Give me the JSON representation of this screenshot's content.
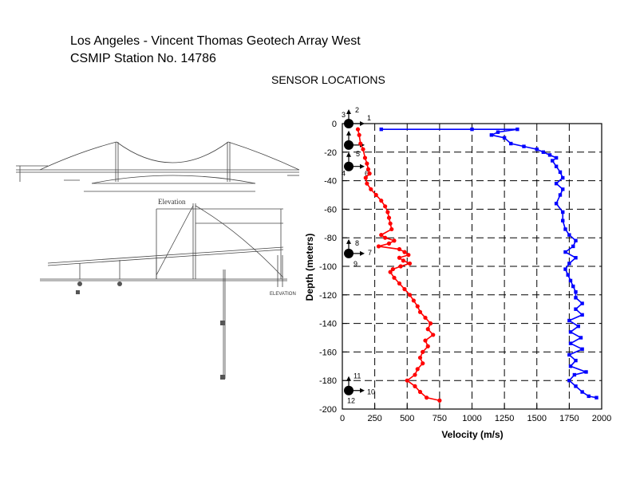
{
  "header": {
    "title_line1": "Los Angeles - Vincent Thomas Geotech Array West",
    "title_line2": "CSMIP Station No. 14786",
    "subtitle": "SENSOR LOCATIONS"
  },
  "drawing": {
    "elevation_label": "Elevation",
    "elevation_label_2": "ELEVATION"
  },
  "sensors": [
    {
      "depth": 0,
      "numbers": [
        "1",
        "2",
        "3"
      ]
    },
    {
      "depth": -15,
      "numbers": [
        "5"
      ]
    },
    {
      "depth": -30,
      "numbers": [
        "4",
        "6"
      ]
    },
    {
      "depth": -91,
      "numbers": [
        "7",
        "8",
        "9"
      ]
    },
    {
      "depth": -187,
      "numbers": [
        "10",
        "11",
        "12"
      ]
    }
  ],
  "chart_data": {
    "type": "line",
    "xlabel": "Velocity (m/s)",
    "ylabel": "Depth (meters)",
    "xlim": [
      0,
      2000
    ],
    "ylim": [
      -200,
      0
    ],
    "xticks": [
      0,
      250,
      500,
      750,
      1000,
      1250,
      1500,
      1750,
      2000
    ],
    "yticks": [
      0,
      -20,
      -40,
      -60,
      -80,
      -100,
      -120,
      -140,
      -160,
      -180,
      -200
    ],
    "grid": true,
    "series": [
      {
        "color": "#ff0000",
        "marker": "circle",
        "points": [
          [
            120,
            -4
          ],
          [
            130,
            -8
          ],
          [
            140,
            -14
          ],
          [
            160,
            -18
          ],
          [
            175,
            -24
          ],
          [
            190,
            -28
          ],
          [
            200,
            -32
          ],
          [
            210,
            -35
          ],
          [
            180,
            -38
          ],
          [
            190,
            -42
          ],
          [
            220,
            -46
          ],
          [
            260,
            -50
          ],
          [
            300,
            -54
          ],
          [
            330,
            -58
          ],
          [
            350,
            -62
          ],
          [
            360,
            -66
          ],
          [
            370,
            -70
          ],
          [
            380,
            -74
          ],
          [
            300,
            -78
          ],
          [
            330,
            -80
          ],
          [
            400,
            -82
          ],
          [
            360,
            -84
          ],
          [
            280,
            -86
          ],
          [
            440,
            -88
          ],
          [
            480,
            -90
          ],
          [
            510,
            -92
          ],
          [
            440,
            -94
          ],
          [
            470,
            -96
          ],
          [
            520,
            -98
          ],
          [
            450,
            -100
          ],
          [
            390,
            -102
          ],
          [
            370,
            -104
          ],
          [
            400,
            -108
          ],
          [
            440,
            -112
          ],
          [
            480,
            -116
          ],
          [
            520,
            -120
          ],
          [
            550,
            -124
          ],
          [
            580,
            -128
          ],
          [
            600,
            -132
          ],
          [
            640,
            -136
          ],
          [
            680,
            -140
          ],
          [
            660,
            -144
          ],
          [
            700,
            -148
          ],
          [
            640,
            -152
          ],
          [
            660,
            -156
          ],
          [
            620,
            -160
          ],
          [
            600,
            -164
          ],
          [
            620,
            -168
          ],
          [
            580,
            -172
          ],
          [
            560,
            -176
          ],
          [
            500,
            -180
          ],
          [
            560,
            -184
          ],
          [
            600,
            -188
          ],
          [
            650,
            -192
          ],
          [
            750,
            -194
          ]
        ]
      },
      {
        "color": "#0000ff",
        "marker": "square",
        "points": [
          [
            300,
            -4
          ],
          [
            1000,
            -4
          ],
          [
            1350,
            -4
          ],
          [
            1200,
            -6
          ],
          [
            1150,
            -8
          ],
          [
            1250,
            -10
          ],
          [
            1300,
            -14
          ],
          [
            1400,
            -16
          ],
          [
            1500,
            -18
          ],
          [
            1550,
            -20
          ],
          [
            1600,
            -22
          ],
          [
            1650,
            -24
          ],
          [
            1620,
            -26
          ],
          [
            1650,
            -30
          ],
          [
            1680,
            -34
          ],
          [
            1700,
            -38
          ],
          [
            1650,
            -42
          ],
          [
            1700,
            -46
          ],
          [
            1680,
            -50
          ],
          [
            1650,
            -56
          ],
          [
            1700,
            -62
          ],
          [
            1700,
            -68
          ],
          [
            1720,
            -74
          ],
          [
            1750,
            -78
          ],
          [
            1800,
            -82
          ],
          [
            1780,
            -86
          ],
          [
            1720,
            -90
          ],
          [
            1800,
            -94
          ],
          [
            1750,
            -98
          ],
          [
            1720,
            -102
          ],
          [
            1740,
            -106
          ],
          [
            1760,
            -110
          ],
          [
            1780,
            -114
          ],
          [
            1800,
            -118
          ],
          [
            1800,
            -122
          ],
          [
            1850,
            -126
          ],
          [
            1800,
            -130
          ],
          [
            1850,
            -134
          ],
          [
            1750,
            -138
          ],
          [
            1820,
            -142
          ],
          [
            1760,
            -146
          ],
          [
            1840,
            -150
          ],
          [
            1760,
            -154
          ],
          [
            1850,
            -158
          ],
          [
            1750,
            -162
          ],
          [
            1800,
            -166
          ],
          [
            1760,
            -170
          ],
          [
            1880,
            -174
          ],
          [
            1790,
            -176
          ],
          [
            1750,
            -180
          ],
          [
            1800,
            -184
          ],
          [
            1850,
            -188
          ],
          [
            1900,
            -191
          ],
          [
            1960,
            -192
          ]
        ]
      }
    ]
  }
}
